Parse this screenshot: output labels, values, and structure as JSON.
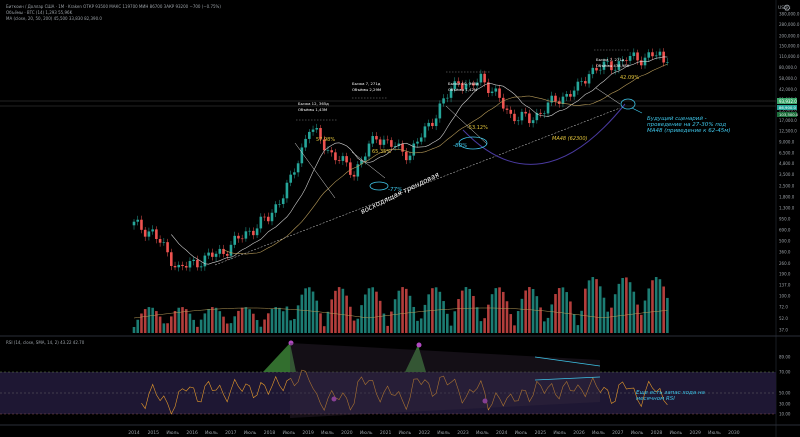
{
  "legend": {
    "line1": "Биткоин / Доллар США · 1М · Kraken  ОТКР 93500  МАКС 119700  МИН 86700  ЗАКР 93200  −700 (−0.75%)",
    "line2": "Объёмы · BTC (14)  1,293  55,96K",
    "line3": "MA (close, 20, 50, 200)  45,500  33,830  82,390.0"
  },
  "toolbar": {
    "gear_icon": "gear-icon"
  },
  "colors": {
    "up": "#26a69a",
    "down": "#ef5350",
    "ma_white": "#cfcfcf",
    "ma_tan": "#b89c5a",
    "arc": "#4a3aa0",
    "rsi_line": "#e69a2b",
    "cyan": "#3ec5e8",
    "yellow": "#e0c23a",
    "rsi_band": "#2a1f45"
  },
  "annotations": {
    "halving1": {
      "line1": "Бычка 12, 365д",
      "line2": "Объёмы 1,43М"
    },
    "halving2": {
      "line1": "Бычка 7, 271д",
      "line2": "Объёмы 2,29М"
    },
    "halving3": {
      "line1": "Бычка 10, 365д",
      "line2": "Объёмы 1,42М"
    },
    "halving4": {
      "line1": "Бычка 7, 271д",
      "line2": "Объёмы 438,98К"
    },
    "pct_57": "57.98%",
    "pct_65": "65.35%",
    "pct_53": "-53.12%",
    "pct_42": "42.09%",
    "pct_77": "-77%",
    "pct_80": "-80%",
    "trendline": "восходящая трендовая",
    "ma_label": "MA48 (62300)",
    "forecast": "Будущий сценарий - проведение на 27-30% под MA48 (приведение к 62-45м)",
    "rsi_note": "Еще есть запас хода на месячном RSI"
  },
  "axis": {
    "price_ticks": [
      "380,000.0",
      "280,000.0",
      "200,000.0",
      "150,000.0",
      "110,000.0",
      "80,000.0",
      "58,000.0",
      "42,000.0",
      "31,000.0",
      "23,000.0",
      "17,000.0",
      "12,500.0",
      "9,000.0",
      "6,500.0",
      "4,800.0",
      "3,500.0",
      "2,500.0",
      "1,800.0",
      "1,300.0",
      "950.0",
      "690.0",
      "500.0",
      "360.0",
      "260.0",
      "190.0",
      "137.0",
      "100.0",
      "72.0",
      "52.0",
      "37.0"
    ],
    "price_badge_1": "93,932.0",
    "price_badge_2": "86,900.0",
    "price_badge_3": "103,500.0",
    "currency": "USD",
    "rsi_ticks": [
      "89.00",
      "70.00",
      "50.00",
      "30.00",
      "10.00"
    ],
    "rsi_label": "RSI (14, close, SMA, 14, 2)  43.22  42.70",
    "x_labels": [
      "2014",
      "2015",
      "Июль",
      "2016",
      "Июль",
      "2017",
      "Июль",
      "2018",
      "Июль",
      "2019",
      "Июль",
      "2020",
      "Июль",
      "2021",
      "Июль",
      "2022",
      "Июль",
      "2023",
      "Июль",
      "2024",
      "Июль",
      "2025",
      "Июль",
      "2026",
      "Июль",
      "2027",
      "Июль",
      "2028",
      "Июль",
      "2029",
      "Июль",
      "2030"
    ]
  },
  "chart_data": {
    "type": "candlestick",
    "title": "Биткоин / Доллар США · 1М · Kraken",
    "scale": "log",
    "ylim": [
      37,
      380000
    ],
    "xlim": [
      "2014-01",
      "2030-12"
    ],
    "series_closes_approx": [
      [
        "2014-01",
        800
      ],
      [
        "2014-06",
        640
      ],
      [
        "2015-01",
        220
      ],
      [
        "2015-07",
        285
      ],
      [
        "2016-01",
        370
      ],
      [
        "2016-07",
        620
      ],
      [
        "2017-01",
        970
      ],
      [
        "2017-07",
        2850
      ],
      [
        "2017-12",
        14000
      ],
      [
        "2018-06",
        6400
      ],
      [
        "2018-12",
        3700
      ],
      [
        "2019-06",
        10800
      ],
      [
        "2019-12",
        7200
      ],
      [
        "2020-03",
        6400
      ],
      [
        "2020-12",
        29000
      ],
      [
        "2021-04",
        57000
      ],
      [
        "2021-07",
        41500
      ],
      [
        "2021-10",
        61300
      ],
      [
        "2022-06",
        19900
      ],
      [
        "2022-11",
        17100
      ],
      [
        "2023-06",
        30400
      ],
      [
        "2023-12",
        42200
      ],
      [
        "2024-03",
        71300
      ],
      [
        "2024-12",
        93400
      ],
      [
        "2025-01",
        102400
      ],
      [
        "2025-06",
        107000
      ],
      [
        "2025-09",
        114000
      ],
      [
        "2025-10",
        109600
      ],
      [
        "2025-11",
        90500
      ],
      [
        "2025-12",
        93200
      ]
    ],
    "rsi_range": [
      10,
      89
    ],
    "rsi_levels": [
      70,
      50,
      30
    ]
  }
}
